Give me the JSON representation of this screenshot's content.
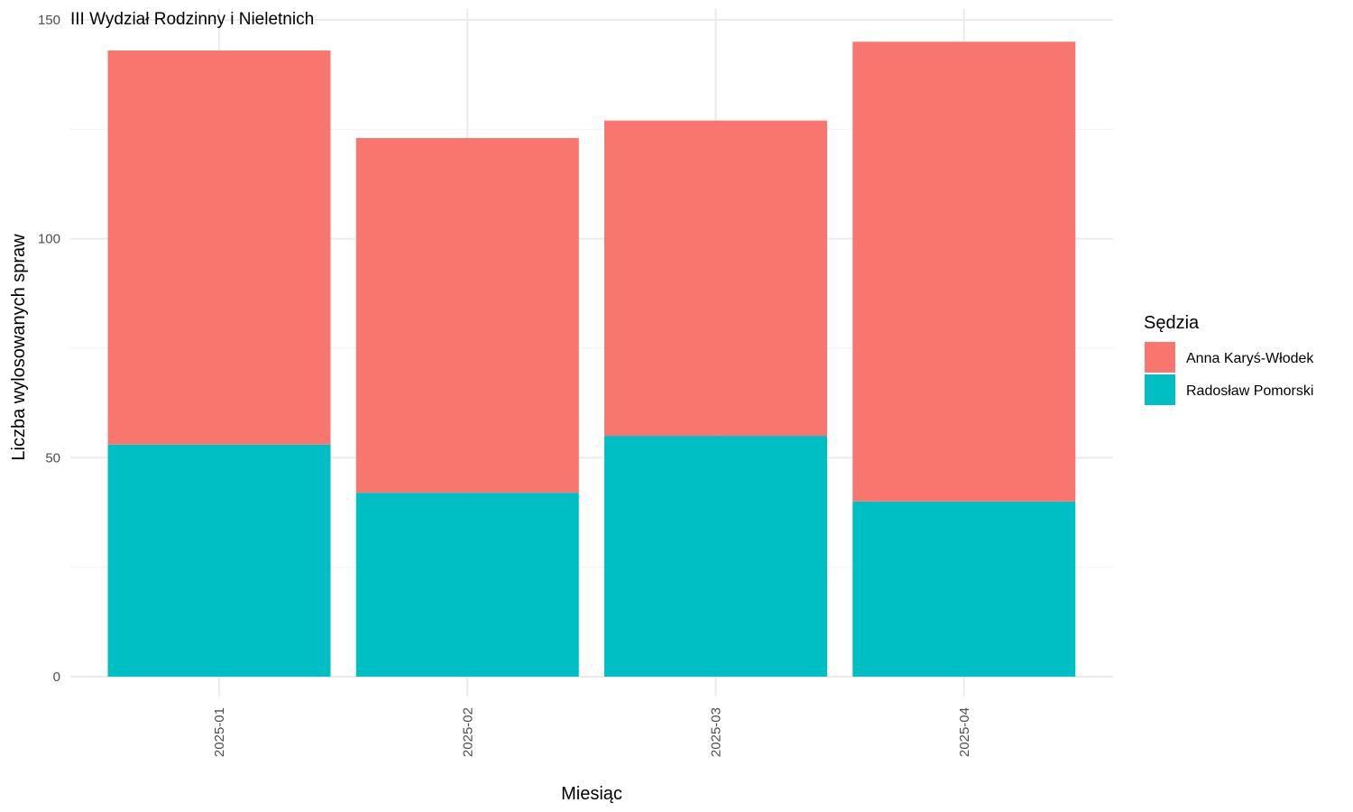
{
  "chart_data": {
    "type": "bar",
    "stacked": true,
    "title": "III Wydział Rodzinny i Nieletnich",
    "xlabel": "Miesiąc",
    "ylabel": "Liczba wylosowanych spraw",
    "categories": [
      "2025-01",
      "2025-02",
      "2025-03",
      "2025-04"
    ],
    "ylim": [
      0,
      150
    ],
    "yticks": [
      0,
      50,
      100,
      150
    ],
    "grid": true,
    "legend": {
      "title": "Sędzia",
      "placement": "right"
    },
    "series": [
      {
        "name": "Radosław Pomorski",
        "color": "#00BFC4",
        "values": [
          53,
          42,
          55,
          40
        ]
      },
      {
        "name": "Anna Karyś-Włodek",
        "color": "#F8766D",
        "values": [
          90,
          81,
          72,
          105
        ]
      }
    ]
  }
}
